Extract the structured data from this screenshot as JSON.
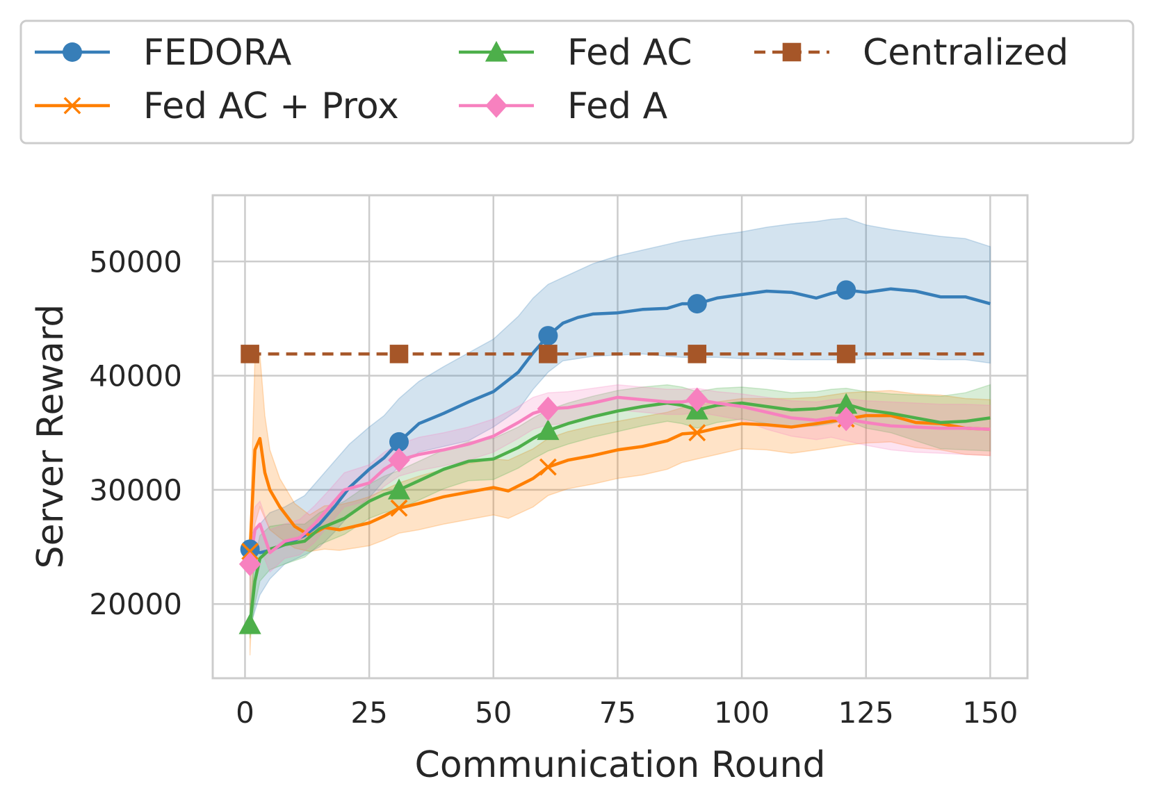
{
  "chart_data": {
    "type": "line",
    "title": "",
    "xlabel": "Communication Round",
    "ylabel": "Server Reward",
    "xlim": [
      -6.5,
      157.5
    ],
    "ylim": [
      13500,
      55800
    ],
    "xticks": [
      0,
      25,
      50,
      75,
      100,
      125,
      150
    ],
    "yticks": [
      20000,
      30000,
      40000,
      50000
    ],
    "xtick_labels": [
      "0",
      "25",
      "50",
      "75",
      "100",
      "125",
      "150"
    ],
    "ytick_labels": [
      "20000",
      "30000",
      "40000",
      "50000"
    ],
    "grid": true,
    "legend_position": "top",
    "markers_at": [
      1,
      31,
      61,
      91,
      121
    ],
    "series": [
      {
        "name": "FEDORA",
        "color": "#377eb8",
        "marker": "circle",
        "dash": "solid",
        "x": [
          1,
          3,
          5,
          8,
          12,
          15,
          18,
          21,
          25,
          28,
          31,
          35,
          40,
          45,
          50,
          55,
          58,
          61,
          64,
          67,
          70,
          75,
          80,
          85,
          88,
          91,
          95,
          100,
          105,
          110,
          115,
          118,
          121,
          125,
          130,
          135,
          140,
          145,
          150
        ],
        "y": [
          24800,
          24500,
          24700,
          25200,
          26000,
          27000,
          28500,
          30200,
          31800,
          32800,
          34200,
          35800,
          36700,
          37700,
          38600,
          40300,
          42000,
          43500,
          44600,
          45100,
          45400,
          45500,
          45800,
          45900,
          46300,
          46300,
          46800,
          47100,
          47400,
          47300,
          46800,
          47200,
          47500,
          47300,
          47600,
          47400,
          46900,
          46900,
          46300
        ],
        "band_upper": [
          26000,
          27000,
          28000,
          28500,
          29500,
          31000,
          32500,
          34000,
          35500,
          36500,
          38000,
          39500,
          40800,
          42000,
          43200,
          45200,
          46800,
          48000,
          48600,
          49200,
          49800,
          50500,
          51000,
          51500,
          51800,
          52000,
          52300,
          52600,
          53000,
          53300,
          53500,
          53700,
          53800,
          53200,
          52800,
          52500,
          52200,
          52000,
          51300
        ],
        "band_lower": [
          18000,
          20800,
          22200,
          23500,
          24300,
          25000,
          26300,
          27800,
          29300,
          30800,
          32000,
          33300,
          33800,
          34300,
          35500,
          37000,
          38800,
          40300,
          41300,
          41500,
          41700,
          41800,
          41900,
          41700,
          41600,
          41600,
          41600,
          41500,
          41500,
          41400,
          41400,
          41400,
          41400,
          41500,
          41500,
          41500,
          41400,
          41400,
          41100
        ]
      },
      {
        "name": "Fed AC + Prox",
        "color": "#ff7f00",
        "marker": "x",
        "dash": "solid",
        "x": [
          1,
          2,
          3,
          4,
          5,
          7,
          10,
          13,
          16,
          19,
          22,
          25,
          28,
          31,
          35,
          40,
          45,
          50,
          53,
          58,
          61,
          65,
          70,
          75,
          80,
          85,
          88,
          91,
          95,
          100,
          105,
          110,
          115,
          118,
          121,
          125,
          130,
          135,
          140,
          145,
          150
        ],
        "y": [
          24600,
          33500,
          34500,
          31500,
          30000,
          28500,
          26800,
          26000,
          26700,
          26500,
          26800,
          27100,
          27700,
          28400,
          28800,
          29400,
          29800,
          30200,
          29900,
          31000,
          32000,
          32600,
          33000,
          33500,
          33800,
          34300,
          34900,
          35000,
          35400,
          35800,
          35700,
          35500,
          35800,
          36000,
          36200,
          36500,
          36500,
          35900,
          35800,
          35400,
          35300
        ],
        "band_upper": [
          26000,
          41500,
          41800,
          36500,
          33500,
          31000,
          28800,
          27800,
          28600,
          28700,
          29000,
          29400,
          30000,
          30600,
          31200,
          31800,
          32300,
          32700,
          32600,
          33600,
          34500,
          35100,
          35600,
          36000,
          36400,
          36800,
          37200,
          37400,
          37700,
          38000,
          38000,
          38000,
          38100,
          38300,
          38500,
          38600,
          38700,
          38400,
          38300,
          38000,
          37900
        ],
        "band_lower": [
          15500,
          27000,
          28500,
          27500,
          26500,
          25800,
          24900,
          24600,
          24800,
          24700,
          24900,
          25100,
          25600,
          26200,
          26500,
          27000,
          27400,
          27800,
          27500,
          28500,
          29500,
          30100,
          30500,
          31000,
          31300,
          31800,
          32400,
          32700,
          33100,
          33600,
          33500,
          33200,
          33500,
          33700,
          33900,
          34100,
          34200,
          33700,
          33500,
          33100,
          33000
        ]
      },
      {
        "name": "Fed AC",
        "color": "#4daf4a",
        "marker": "triangle",
        "dash": "solid",
        "x": [
          1,
          2,
          3,
          5,
          8,
          12,
          15,
          20,
          25,
          28,
          31,
          35,
          40,
          45,
          50,
          55,
          58,
          61,
          65,
          70,
          75,
          80,
          85,
          88,
          91,
          95,
          100,
          105,
          110,
          115,
          118,
          121,
          125,
          130,
          135,
          140,
          145,
          150
        ],
        "y": [
          18200,
          22000,
          24000,
          24800,
          25200,
          25500,
          26600,
          27500,
          29000,
          29600,
          30000,
          30800,
          31800,
          32500,
          32700,
          33700,
          34500,
          35200,
          35800,
          36400,
          36900,
          37300,
          37600,
          37400,
          37000,
          37400,
          37600,
          37300,
          37000,
          37100,
          37300,
          37500,
          37000,
          36700,
          36300,
          35900,
          36000,
          36300
        ],
        "band_upper": [
          19500,
          24000,
          26000,
          26800,
          27000,
          27000,
          28000,
          29000,
          30500,
          31200,
          31700,
          32500,
          33500,
          34200,
          34500,
          35500,
          36300,
          37000,
          37600,
          38200,
          38700,
          39000,
          39200,
          39000,
          38600,
          38900,
          39000,
          38800,
          38500,
          38600,
          38800,
          38900,
          38600,
          38400,
          38300,
          38200,
          38500,
          39200
        ],
        "band_lower": [
          17000,
          20000,
          22000,
          23000,
          23500,
          24100,
          25200,
          26100,
          27500,
          28000,
          28300,
          29100,
          30100,
          30800,
          30900,
          31900,
          32700,
          33400,
          34000,
          34600,
          35100,
          35600,
          36000,
          35800,
          35400,
          35900,
          36200,
          35800,
          35500,
          35600,
          35800,
          36100,
          35400,
          35000,
          34300,
          33600,
          33500,
          33400
        ]
      },
      {
        "name": "Fed A",
        "color": "#f781bf",
        "marker": "diamond",
        "dash": "solid",
        "x": [
          1,
          2,
          3,
          5,
          8,
          11,
          14,
          17,
          20,
          25,
          28,
          31,
          35,
          40,
          45,
          50,
          55,
          58,
          61,
          65,
          70,
          75,
          80,
          85,
          88,
          91,
          95,
          100,
          105,
          110,
          115,
          118,
          121,
          125,
          130,
          135,
          140,
          145,
          150
        ],
        "y": [
          23500,
          26500,
          27000,
          24500,
          25500,
          25800,
          27000,
          28500,
          30000,
          30600,
          31800,
          32600,
          33100,
          33500,
          34000,
          34700,
          35900,
          36700,
          37100,
          37200,
          37600,
          38100,
          37900,
          37700,
          37700,
          37900,
          37600,
          37300,
          36800,
          36300,
          36100,
          36300,
          36200,
          35900,
          35600,
          35500,
          35400,
          35400,
          35300
        ],
        "band_upper": [
          24500,
          28500,
          29000,
          26500,
          27000,
          27400,
          28600,
          30000,
          31500,
          32200,
          33300,
          34000,
          34600,
          35000,
          35500,
          36200,
          37300,
          38100,
          38500,
          38600,
          38900,
          39200,
          39000,
          38800,
          38800,
          38900,
          38600,
          38400,
          38100,
          37800,
          37700,
          37900,
          38000,
          37800,
          37700,
          37600,
          37500,
          37500,
          37400
        ],
        "band_lower": [
          22500,
          24500,
          25000,
          22800,
          24000,
          24300,
          25400,
          27000,
          28500,
          29100,
          30300,
          31200,
          31700,
          32100,
          32600,
          33300,
          34500,
          35300,
          35700,
          35800,
          36300,
          37000,
          36800,
          36600,
          36600,
          36800,
          36500,
          36100,
          35300,
          34700,
          34400,
          34600,
          34300,
          33900,
          33500,
          33300,
          33200,
          33100,
          33000
        ]
      },
      {
        "name": "Centralized",
        "color": "#a65628",
        "marker": "square",
        "dash": "dashed",
        "x": [
          1,
          150
        ],
        "y": [
          41900,
          41900
        ]
      }
    ]
  }
}
